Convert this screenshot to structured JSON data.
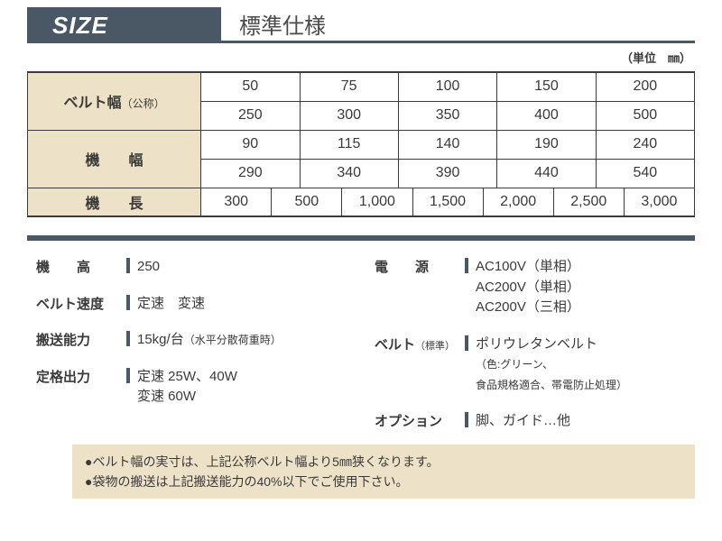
{
  "colors": {
    "tab_bg": "#4a5866",
    "tab_fg": "#ffffff",
    "title_fg": "#4a4a4a",
    "title_border": "#4a5866",
    "table_border": "#3a3a3a",
    "th_bg": "#ede2c8",
    "td_bg": "#ffffff",
    "rule": "#4a5866",
    "bar": "#4a5866",
    "notes_bg": "#ede2c8",
    "text": "#3a3a3a"
  },
  "header": {
    "size_label": "SIZE",
    "spec_title": "標準仕様"
  },
  "unit_note": "（単位　㎜）",
  "table": {
    "rows": [
      {
        "label": "ベルト幅",
        "label_sub": "（公称）",
        "cells1": [
          "50",
          "75",
          "100",
          "150",
          "200"
        ],
        "cells2": [
          "250",
          "300",
          "350",
          "400",
          "500"
        ]
      },
      {
        "label": "機　　幅",
        "cells1": [
          "90",
          "115",
          "140",
          "190",
          "240"
        ],
        "cells2": [
          "290",
          "340",
          "390",
          "440",
          "540"
        ]
      },
      {
        "label": "機　　長",
        "cells7": [
          "300",
          "500",
          "1,000",
          "1,500",
          "2,000",
          "2,500",
          "3,000"
        ]
      }
    ]
  },
  "specs_left": [
    {
      "label": "機　　高",
      "value": "250"
    },
    {
      "label": "ベルト速度",
      "value": "定速　変速"
    },
    {
      "label": "搬送能力",
      "value": "15kg/台",
      "value_sub": "（水平分散荷重時）"
    },
    {
      "label": "定格出力",
      "value_lines": [
        "定速 25W、40W",
        "変速 60W"
      ]
    }
  ],
  "specs_right": [
    {
      "label": "電　　源",
      "value_lines": [
        "AC100V（単相）",
        "AC200V（単相）",
        "AC200V（三相）"
      ]
    },
    {
      "label": "ベルト",
      "label_sub": "（標準）",
      "value": "ポリウレタンベルト",
      "value_sub_lines": [
        "（色:グリーン、",
        "食品規格適合、帯電防止処理）"
      ]
    },
    {
      "label": "オプション",
      "value": "脚、ガイド…他"
    }
  ],
  "notes": [
    "●ベルト幅の実寸は、上記公称ベルト幅より5㎜狭くなります。",
    "●袋物の搬送は上記搬送能力の40%以下でご使用下さい。"
  ]
}
